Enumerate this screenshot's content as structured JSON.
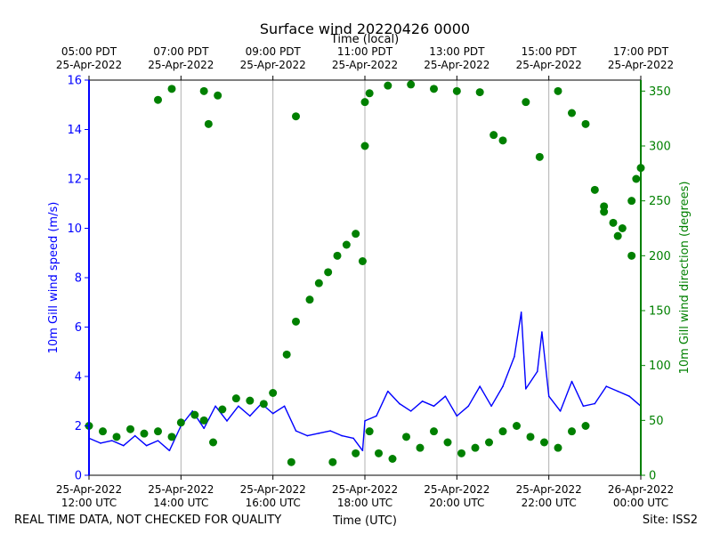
{
  "chart_data": {
    "type": "line+scatter",
    "title": "Surface wind 20220426 0000",
    "top_axis_label": "Time (local)",
    "xlabel": "Time (UTC)",
    "ylabel_left": "10m Gill wind speed (m/s)",
    "ylabel_right": "10m Gill wind direction (degrees)",
    "ylim_left": [
      0,
      16
    ],
    "ylim_right": [
      0,
      360
    ],
    "left_ticks": [
      "0",
      "2",
      "4",
      "6",
      "8",
      "10",
      "12",
      "14",
      "16"
    ],
    "right_ticks": [
      "0",
      "50",
      "100",
      "150",
      "200",
      "250",
      "300",
      "350"
    ],
    "x_range_hours_utc": [
      12.0,
      24.0
    ],
    "bottom_ticks": [
      {
        "hour": 12,
        "line1": "25-Apr-2022",
        "line2": "12:00 UTC"
      },
      {
        "hour": 14,
        "line1": "25-Apr-2022",
        "line2": "14:00 UTC"
      },
      {
        "hour": 16,
        "line1": "25-Apr-2022",
        "line2": "16:00 UTC"
      },
      {
        "hour": 18,
        "line1": "25-Apr-2022",
        "line2": "18:00 UTC"
      },
      {
        "hour": 20,
        "line1": "25-Apr-2022",
        "line2": "20:00 UTC"
      },
      {
        "hour": 22,
        "line1": "25-Apr-2022",
        "line2": "22:00 UTC"
      },
      {
        "hour": 24,
        "line1": "26-Apr-2022",
        "line2": "00:00 UTC"
      }
    ],
    "top_ticks": [
      {
        "hour": 12,
        "line1": "05:00 PDT",
        "line2": "25-Apr-2022"
      },
      {
        "hour": 14,
        "line1": "07:00 PDT",
        "line2": "25-Apr-2022"
      },
      {
        "hour": 16,
        "line1": "09:00 PDT",
        "line2": "25-Apr-2022"
      },
      {
        "hour": 18,
        "line1": "11:00 PDT",
        "line2": "25-Apr-2022"
      },
      {
        "hour": 20,
        "line1": "13:00 PDT",
        "line2": "25-Apr-2022"
      },
      {
        "hour": 22,
        "line1": "15:00 PDT",
        "line2": "25-Apr-2022"
      },
      {
        "hour": 24,
        "line1": "17:00 PDT",
        "line2": "25-Apr-2022"
      }
    ],
    "grid": "vertical",
    "series": [
      {
        "name": "10m Gill wind speed",
        "axis": "left",
        "style": "line",
        "color": "#0000ff",
        "hours": [
          12.0,
          12.25,
          12.5,
          12.75,
          13.0,
          13.25,
          13.5,
          13.75,
          14.0,
          14.25,
          14.5,
          14.75,
          15.0,
          15.25,
          15.5,
          15.75,
          16.0,
          16.25,
          16.5,
          16.75,
          17.0,
          17.25,
          17.5,
          17.75,
          17.95,
          18.0,
          18.25,
          18.5,
          18.75,
          19.0,
          19.25,
          19.5,
          19.75,
          20.0,
          20.25,
          20.5,
          20.75,
          21.0,
          21.25,
          21.4,
          21.5,
          21.75,
          21.85,
          22.0,
          22.25,
          22.5,
          22.75,
          23.0,
          23.25,
          23.5,
          23.75,
          24.0
        ],
        "values": [
          1.5,
          1.3,
          1.4,
          1.2,
          1.6,
          1.2,
          1.4,
          1.0,
          2.0,
          2.6,
          1.9,
          2.8,
          2.2,
          2.8,
          2.4,
          2.9,
          2.5,
          2.8,
          1.8,
          1.6,
          1.7,
          1.8,
          1.6,
          1.5,
          1.0,
          2.2,
          2.4,
          3.4,
          2.9,
          2.6,
          3.0,
          2.8,
          3.2,
          2.4,
          2.8,
          3.6,
          2.8,
          3.6,
          4.8,
          6.6,
          3.5,
          4.2,
          5.8,
          3.2,
          2.6,
          3.8,
          2.8,
          2.9,
          3.6,
          3.4,
          3.2,
          2.8
        ]
      },
      {
        "name": "10m Gill wind direction",
        "axis": "right",
        "style": "scatter",
        "color": "#008000",
        "hours": [
          12.0,
          12.3,
          12.6,
          12.9,
          13.2,
          13.5,
          13.8,
          14.0,
          14.3,
          14.5,
          14.7,
          14.9,
          15.2,
          15.5,
          15.8,
          16.0,
          16.3,
          16.5,
          16.8,
          17.0,
          17.2,
          17.4,
          17.6,
          17.8,
          17.95,
          18.0,
          18.1,
          18.3,
          18.6,
          18.9,
          19.2,
          19.5,
          19.8,
          20.1,
          20.4,
          20.7,
          21.0,
          21.3,
          21.6,
          21.9,
          22.2,
          22.5,
          22.8,
          23.0,
          23.2,
          23.4,
          23.6,
          23.8,
          24.0,
          13.5,
          13.8,
          14.5,
          14.6,
          14.8,
          16.5,
          18.0,
          18.1,
          18.5,
          19.0,
          19.5,
          20.0,
          20.5,
          20.8,
          21.0,
          21.5,
          21.8,
          22.2,
          22.5,
          22.8,
          23.2,
          23.5,
          23.8,
          23.9,
          16.4,
          17.3,
          17.8
        ],
        "values": [
          45,
          40,
          35,
          42,
          38,
          40,
          35,
          48,
          55,
          50,
          30,
          60,
          70,
          68,
          65,
          75,
          110,
          140,
          160,
          175,
          185,
          200,
          210,
          220,
          195,
          300,
          40,
          20,
          15,
          35,
          25,
          40,
          30,
          20,
          25,
          30,
          40,
          45,
          35,
          30,
          25,
          40,
          45,
          260,
          245,
          230,
          225,
          250,
          280,
          342,
          352,
          350,
          320,
          346,
          327,
          340,
          348,
          355,
          356,
          352,
          350,
          349,
          310,
          305,
          340,
          290,
          350,
          330,
          320,
          240,
          218,
          200,
          270,
          12,
          12,
          20
        ]
      }
    ],
    "footer_left": "REAL TIME DATA, NOT CHECKED FOR QUALITY",
    "footer_right": "Site: ISS2",
    "colors": {
      "speed": "#0000ff",
      "direction": "#008000",
      "grid": "#b0b0b0",
      "frame": "#000000"
    }
  }
}
